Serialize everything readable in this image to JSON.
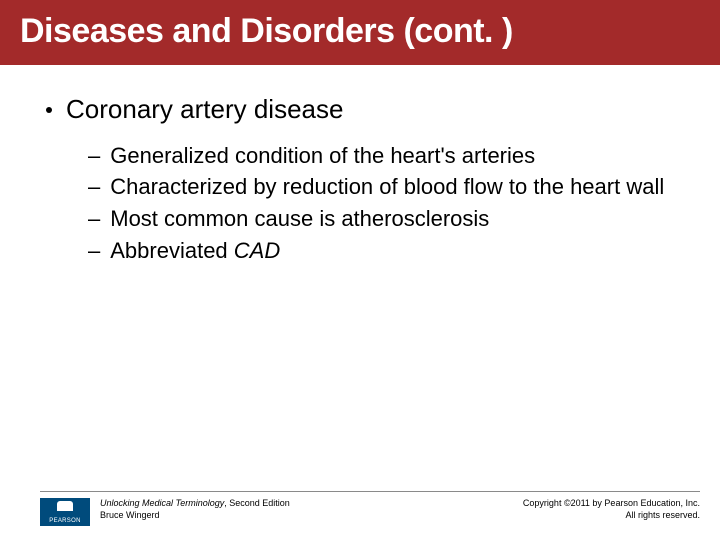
{
  "title": "Diseases and Disorders (cont. )",
  "bullet": {
    "text": "Coronary artery disease",
    "subs": [
      {
        "text": "Generalized condition of the heart's arteries"
      },
      {
        "text": "Characterized by reduction of blood flow to the heart wall"
      },
      {
        "text": "Most common cause is atherosclerosis"
      },
      {
        "prefix": "Abbreviated ",
        "italic": "CAD"
      }
    ]
  },
  "footer": {
    "logo_brand": "PEARSON",
    "book_title": "Unlocking Medical Terminology",
    "book_edition": ", Second Edition",
    "author": "Bruce Wingerd",
    "copyright_line1": "Copyright ©2011 by Pearson Education, Inc.",
    "copyright_line2": "All rights reserved."
  },
  "colors": {
    "title_band": "#a32a2a",
    "logo_bg": "#004b7c",
    "text": "#000000",
    "bg": "#ffffff"
  }
}
